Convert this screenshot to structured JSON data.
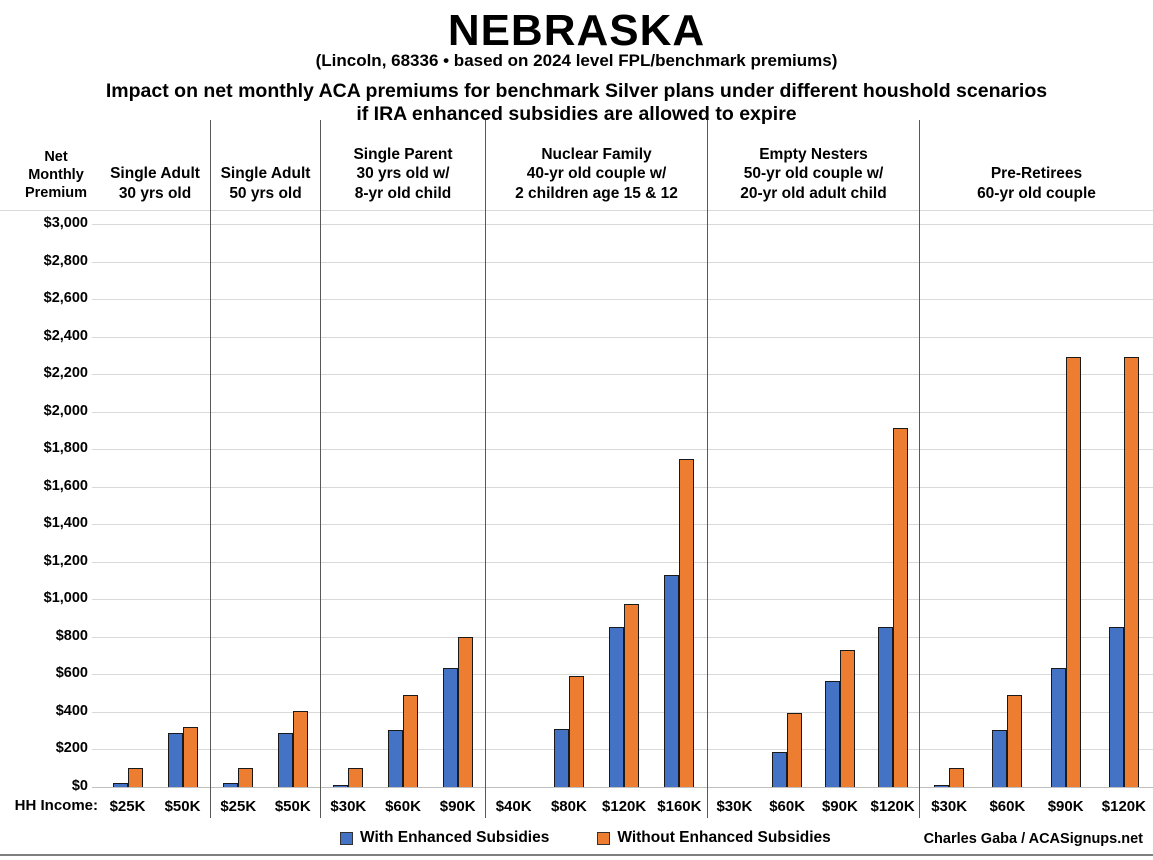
{
  "title": "NEBRASKA",
  "subtitle": "(Lincoln, 68336 • based on 2024 level FPL/benchmark premiums)",
  "heading_line1": "Impact on net monthly ACA premiums for benchmark Silver plans under different houshold scenarios",
  "heading_line2": "if IRA enhanced subsidies are allowed to expire",
  "y_axis_title": "Net\nMonthly\nPremium",
  "hh_income_label": "HH Income:",
  "legend": {
    "with_label": "With Enhanced Subsidies",
    "without_label": "Without Enhanced Subsidies"
  },
  "credit": "Charles Gaba / ACASignups.net",
  "colors": {
    "with_enhanced": "#4472C4",
    "without_enhanced": "#ED7D31",
    "gridline": "#d9d9d9",
    "divider": "#595959"
  },
  "chart_data": {
    "type": "bar",
    "title": "Impact on net monthly ACA premiums for benchmark Silver plans under different houshold scenarios if IRA enhanced subsidies are allowed to expire",
    "ylabel": "Net Monthly Premium",
    "ylim": [
      0,
      3000
    ],
    "y_tick_step": 200,
    "y_tick_labels": [
      "$0",
      "$200",
      "$400",
      "$600",
      "$800",
      "$1,000",
      "$1,200",
      "$1,400",
      "$1,600",
      "$1,800",
      "$2,000",
      "$2,200",
      "$2,400",
      "$2,600",
      "$2,800",
      "$3,000"
    ],
    "grid": true,
    "legend_position": "bottom",
    "series_names": [
      "With Enhanced Subsidies",
      "Without Enhanced Subsidies"
    ],
    "groups": [
      {
        "header_lines": [
          "Single Adult",
          "30 yrs old"
        ],
        "incomes": [
          "$25K",
          "$50K"
        ],
        "with_enhanced": [
          20,
          290
        ],
        "without_enhanced": [
          100,
          320
        ]
      },
      {
        "header_lines": [
          "Single Adult",
          "50 yrs old"
        ],
        "incomes": [
          "$25K",
          "$50K"
        ],
        "with_enhanced": [
          20,
          290
        ],
        "without_enhanced": [
          100,
          405
        ]
      },
      {
        "header_lines": [
          "Single Parent",
          "30 yrs old w/",
          "8-yr old child"
        ],
        "incomes": [
          "$30K",
          "$60K",
          "$90K"
        ],
        "with_enhanced": [
          10,
          305,
          635
        ],
        "without_enhanced": [
          100,
          490,
          800
        ]
      },
      {
        "header_lines": [
          "Nuclear Family",
          "40-yr old couple w/",
          "2 children age 15 & 12"
        ],
        "incomes": [
          "$40K",
          "$80K",
          "$120K",
          "$160K"
        ],
        "with_enhanced": [
          0,
          310,
          850,
          1130
        ],
        "without_enhanced": [
          0,
          590,
          975,
          1750
        ]
      },
      {
        "header_lines": [
          "Empty Nesters",
          "50-yr old couple w/",
          "20-yr old adult child"
        ],
        "incomes": [
          "$30K",
          "$60K",
          "$90K",
          "$120K"
        ],
        "with_enhanced": [
          0,
          185,
          565,
          850
        ],
        "without_enhanced": [
          0,
          395,
          730,
          1915
        ]
      },
      {
        "header_lines": [
          "Pre-Retirees",
          "60-yr old couple"
        ],
        "incomes": [
          "$30K",
          "$60K",
          "$90K",
          "$120K"
        ],
        "with_enhanced": [
          10,
          305,
          635,
          850
        ],
        "without_enhanced": [
          100,
          490,
          2290,
          2290
        ]
      }
    ],
    "group_x_bounds": [
      100,
      211,
      321,
      486,
      708,
      920,
      1153
    ]
  }
}
